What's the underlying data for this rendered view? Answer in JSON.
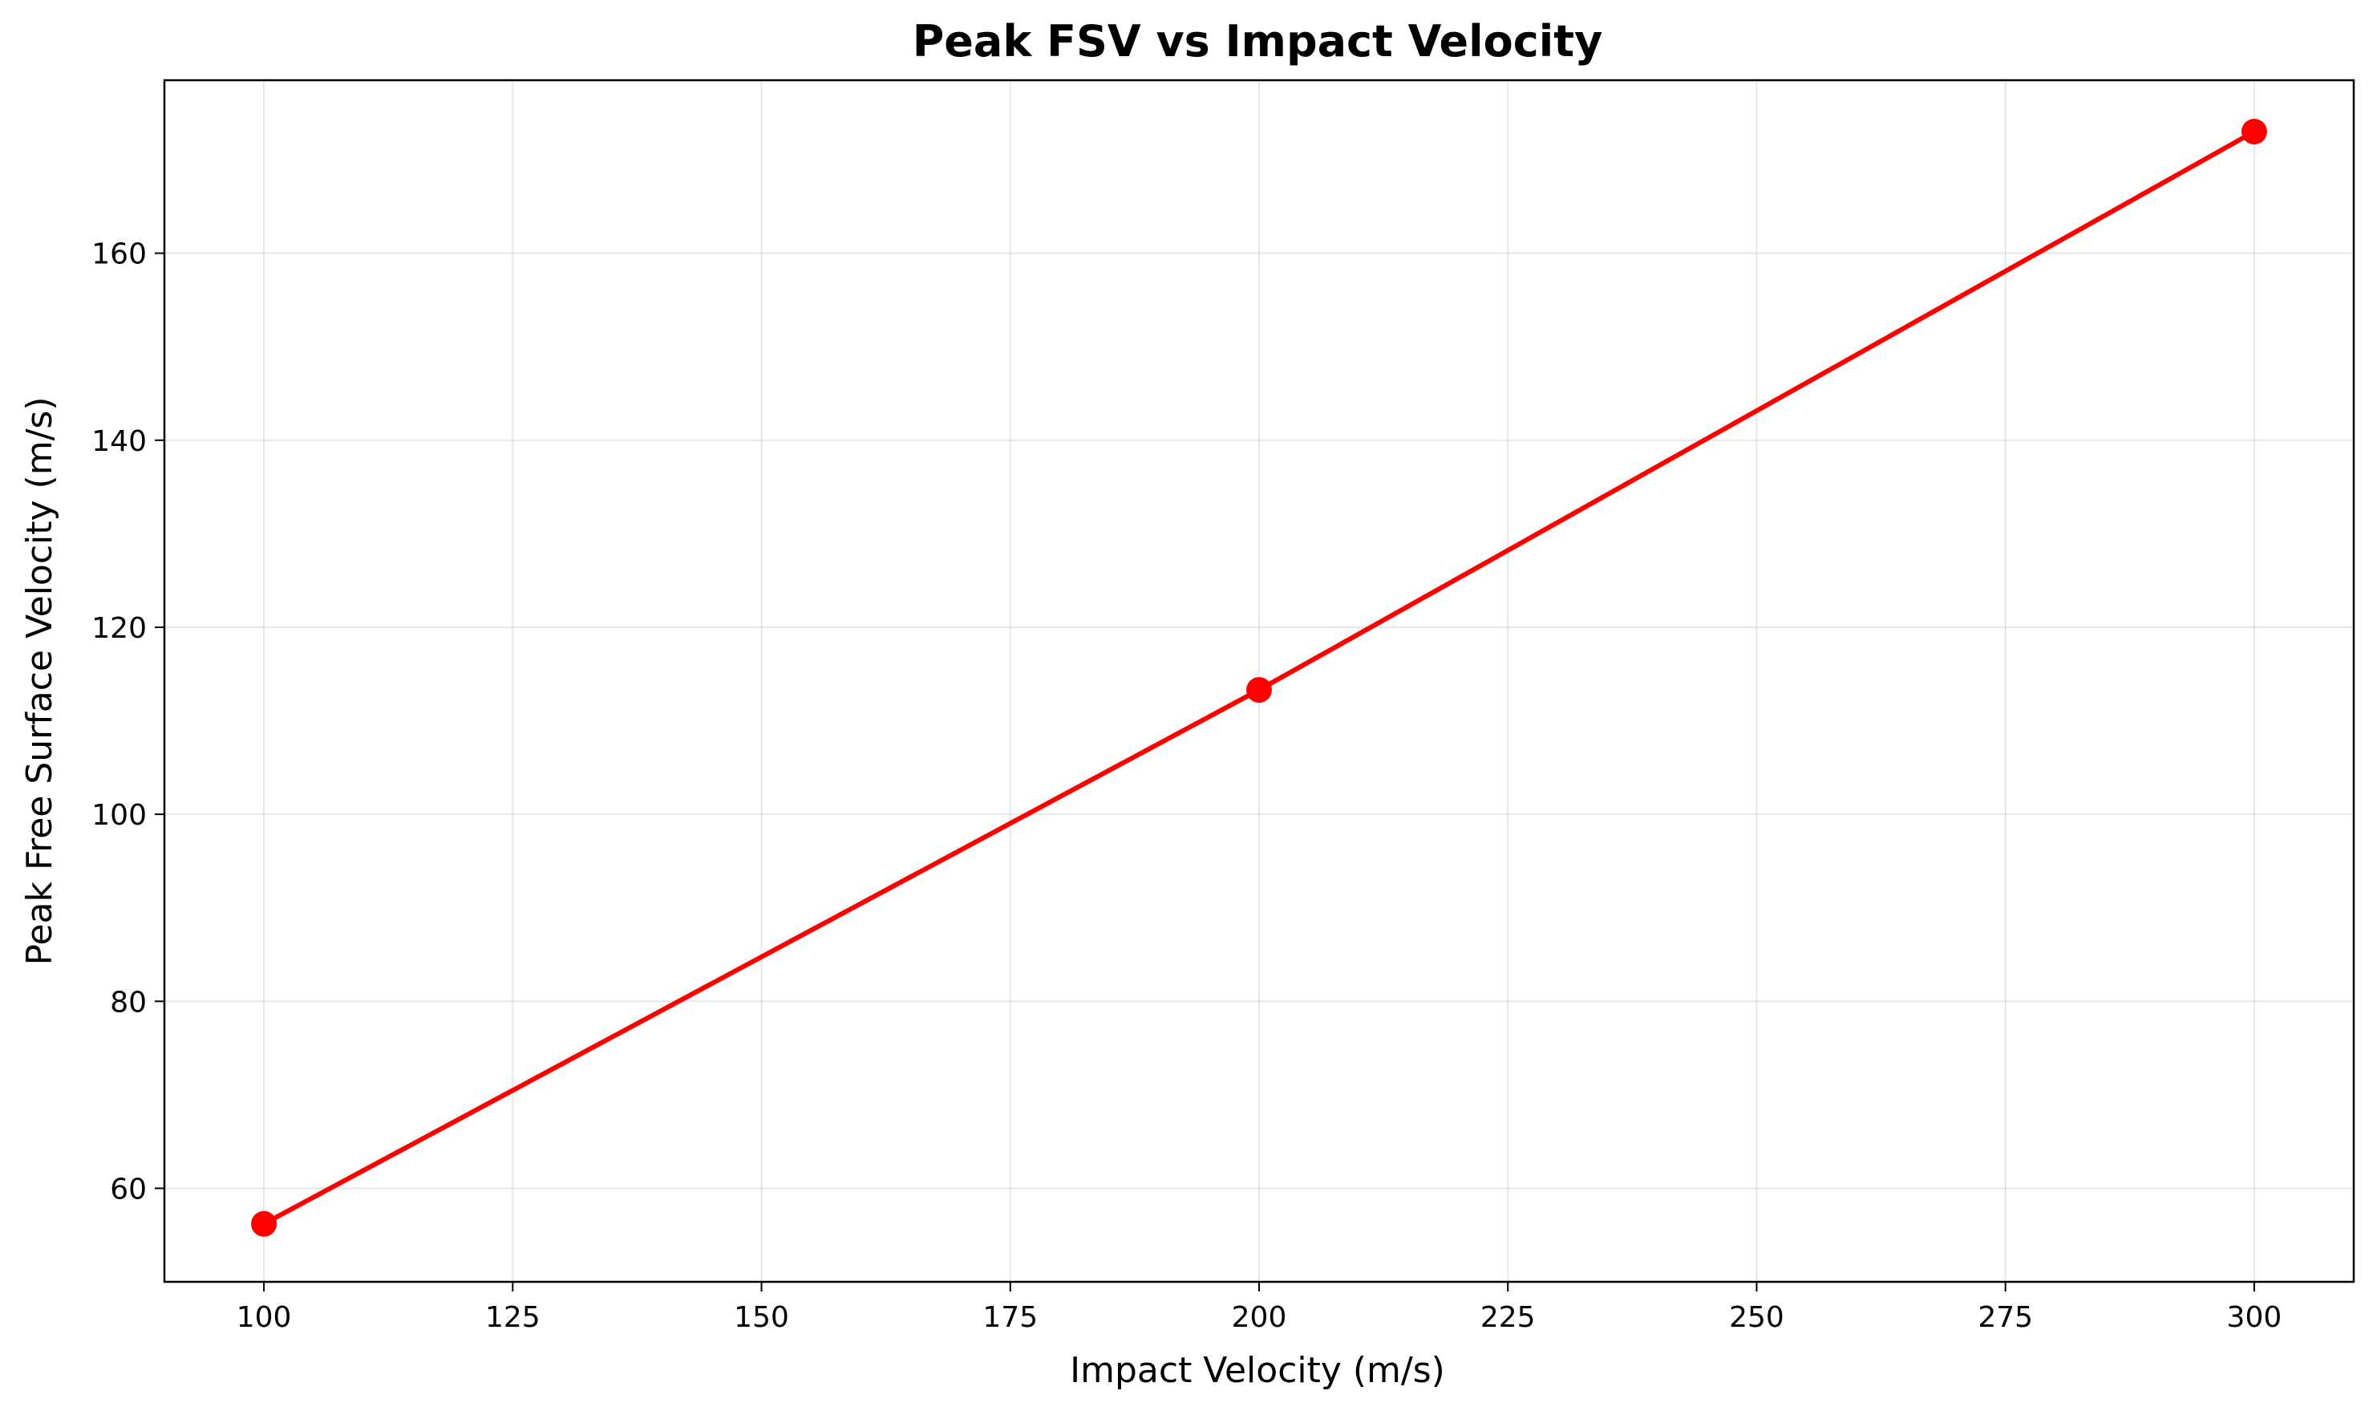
{
  "chart_data": {
    "type": "line",
    "title": "Peak FSV vs Impact Velocity",
    "xlabel": "Impact Velocity (m/s)",
    "ylabel": "Peak Free Surface Velocity (m/s)",
    "xlim": [
      90,
      310
    ],
    "ylim": [
      50,
      178.5
    ],
    "xticks": [
      100,
      125,
      150,
      175,
      200,
      225,
      250,
      275,
      300
    ],
    "yticks": [
      60,
      80,
      100,
      120,
      140,
      160
    ],
    "x_tick_labels": [
      "100",
      "125",
      "150",
      "175",
      "200",
      "225",
      "250",
      "275",
      "300"
    ],
    "y_tick_labels": [
      "60",
      "80",
      "100",
      "120",
      "140",
      "160"
    ],
    "grid": true,
    "series": [
      {
        "x": [
          100,
          200,
          300
        ],
        "y": [
          56.2,
          113.3,
          173.0
        ],
        "color": "#ff0000",
        "marker": "circle"
      }
    ]
  }
}
